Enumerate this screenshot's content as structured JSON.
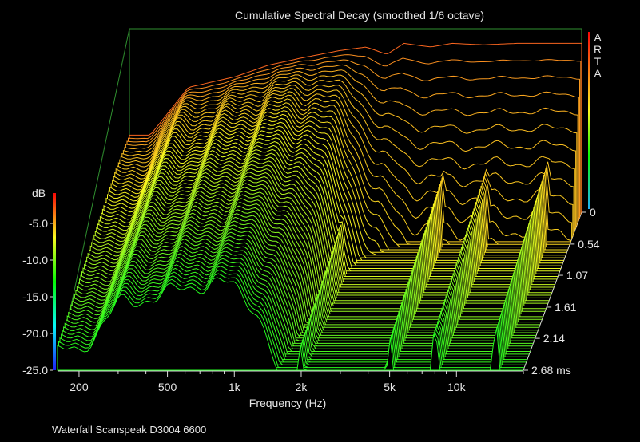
{
  "chart_data": {
    "type": "waterfall",
    "title": "Cumulative Spectral Decay (smoothed 1/6 octave)",
    "footer": "Waterfall Scanspeak D3004 6600",
    "xlabel": "Frequency (Hz)",
    "x_ticks": [
      "200",
      "500",
      "1k",
      "2k",
      "5k",
      "10k"
    ],
    "x_tick_values": [
      200,
      500,
      1000,
      2000,
      5000,
      10000
    ],
    "x_scale": "log",
    "x_range": [
      160,
      20000
    ],
    "y_label": "dB",
    "y_ticks": [
      "-5.0",
      "-10.0",
      "-15.0",
      "-20.0",
      "-25.0"
    ],
    "y_tick_values": [
      -5,
      -10,
      -15,
      -20,
      -25
    ],
    "y_range": [
      -25,
      0
    ],
    "z_ticks": [
      "0",
      "0.54",
      "1.07",
      "1.61",
      "2.14",
      "2.68 ms"
    ],
    "z_tick_values": [
      0,
      0.54,
      1.07,
      1.61,
      2.14,
      2.68
    ],
    "z_unit": "ms",
    "brand_letters": [
      "A",
      "R",
      "T",
      "A"
    ],
    "colors": {
      "background": "#000000",
      "frame": "#2f8f2f",
      "text": "#e6e6e6",
      "floor": "#4a6cf0"
    },
    "slice_count": 60,
    "slice_times_ms": [
      0.0,
      0.0454,
      0.0908,
      0.1363,
      0.1817,
      0.2271,
      0.2725,
      0.318,
      0.3634,
      0.4088,
      0.4542,
      0.4997,
      0.5451,
      0.5905,
      0.6359,
      0.6814,
      0.7268,
      0.7722,
      0.8176,
      0.8631,
      0.9085,
      0.9539,
      0.9993,
      1.0447,
      1.0902,
      1.1356,
      1.181,
      1.2264,
      1.2719,
      1.3173,
      1.3627,
      1.4081,
      1.4536,
      1.499,
      1.5444,
      1.5898,
      1.6353,
      1.6807,
      1.7261,
      1.7715,
      1.8169,
      1.8624,
      1.9078,
      1.9532,
      1.9986,
      2.0441,
      2.0895,
      2.1349,
      2.1803,
      2.2258,
      2.2712,
      2.3166,
      2.362,
      2.4075,
      2.4529,
      2.4983,
      2.5437,
      2.5892,
      2.6346,
      2.68
    ],
    "response_freq_hz": [
      200,
      300,
      500,
      700,
      1000,
      1500,
      2000,
      2500,
      3000,
      4000,
      5000,
      7000,
      10000,
      15000,
      20000
    ],
    "response_db_t0": [
      -14.5,
      -8.0,
      -6.5,
      -5.0,
      -4.0,
      -3.0,
      -2.5,
      -3.5,
      -2.0,
      -2.5,
      -2.0,
      -2.2,
      -2.0,
      -2.0,
      -2.0
    ],
    "decay_note_freq_hz": [
      2000,
      5000,
      8000,
      15000
    ],
    "decay_residual_db": [
      -20.5,
      -19.5,
      -18.0,
      -17.5
    ]
  }
}
